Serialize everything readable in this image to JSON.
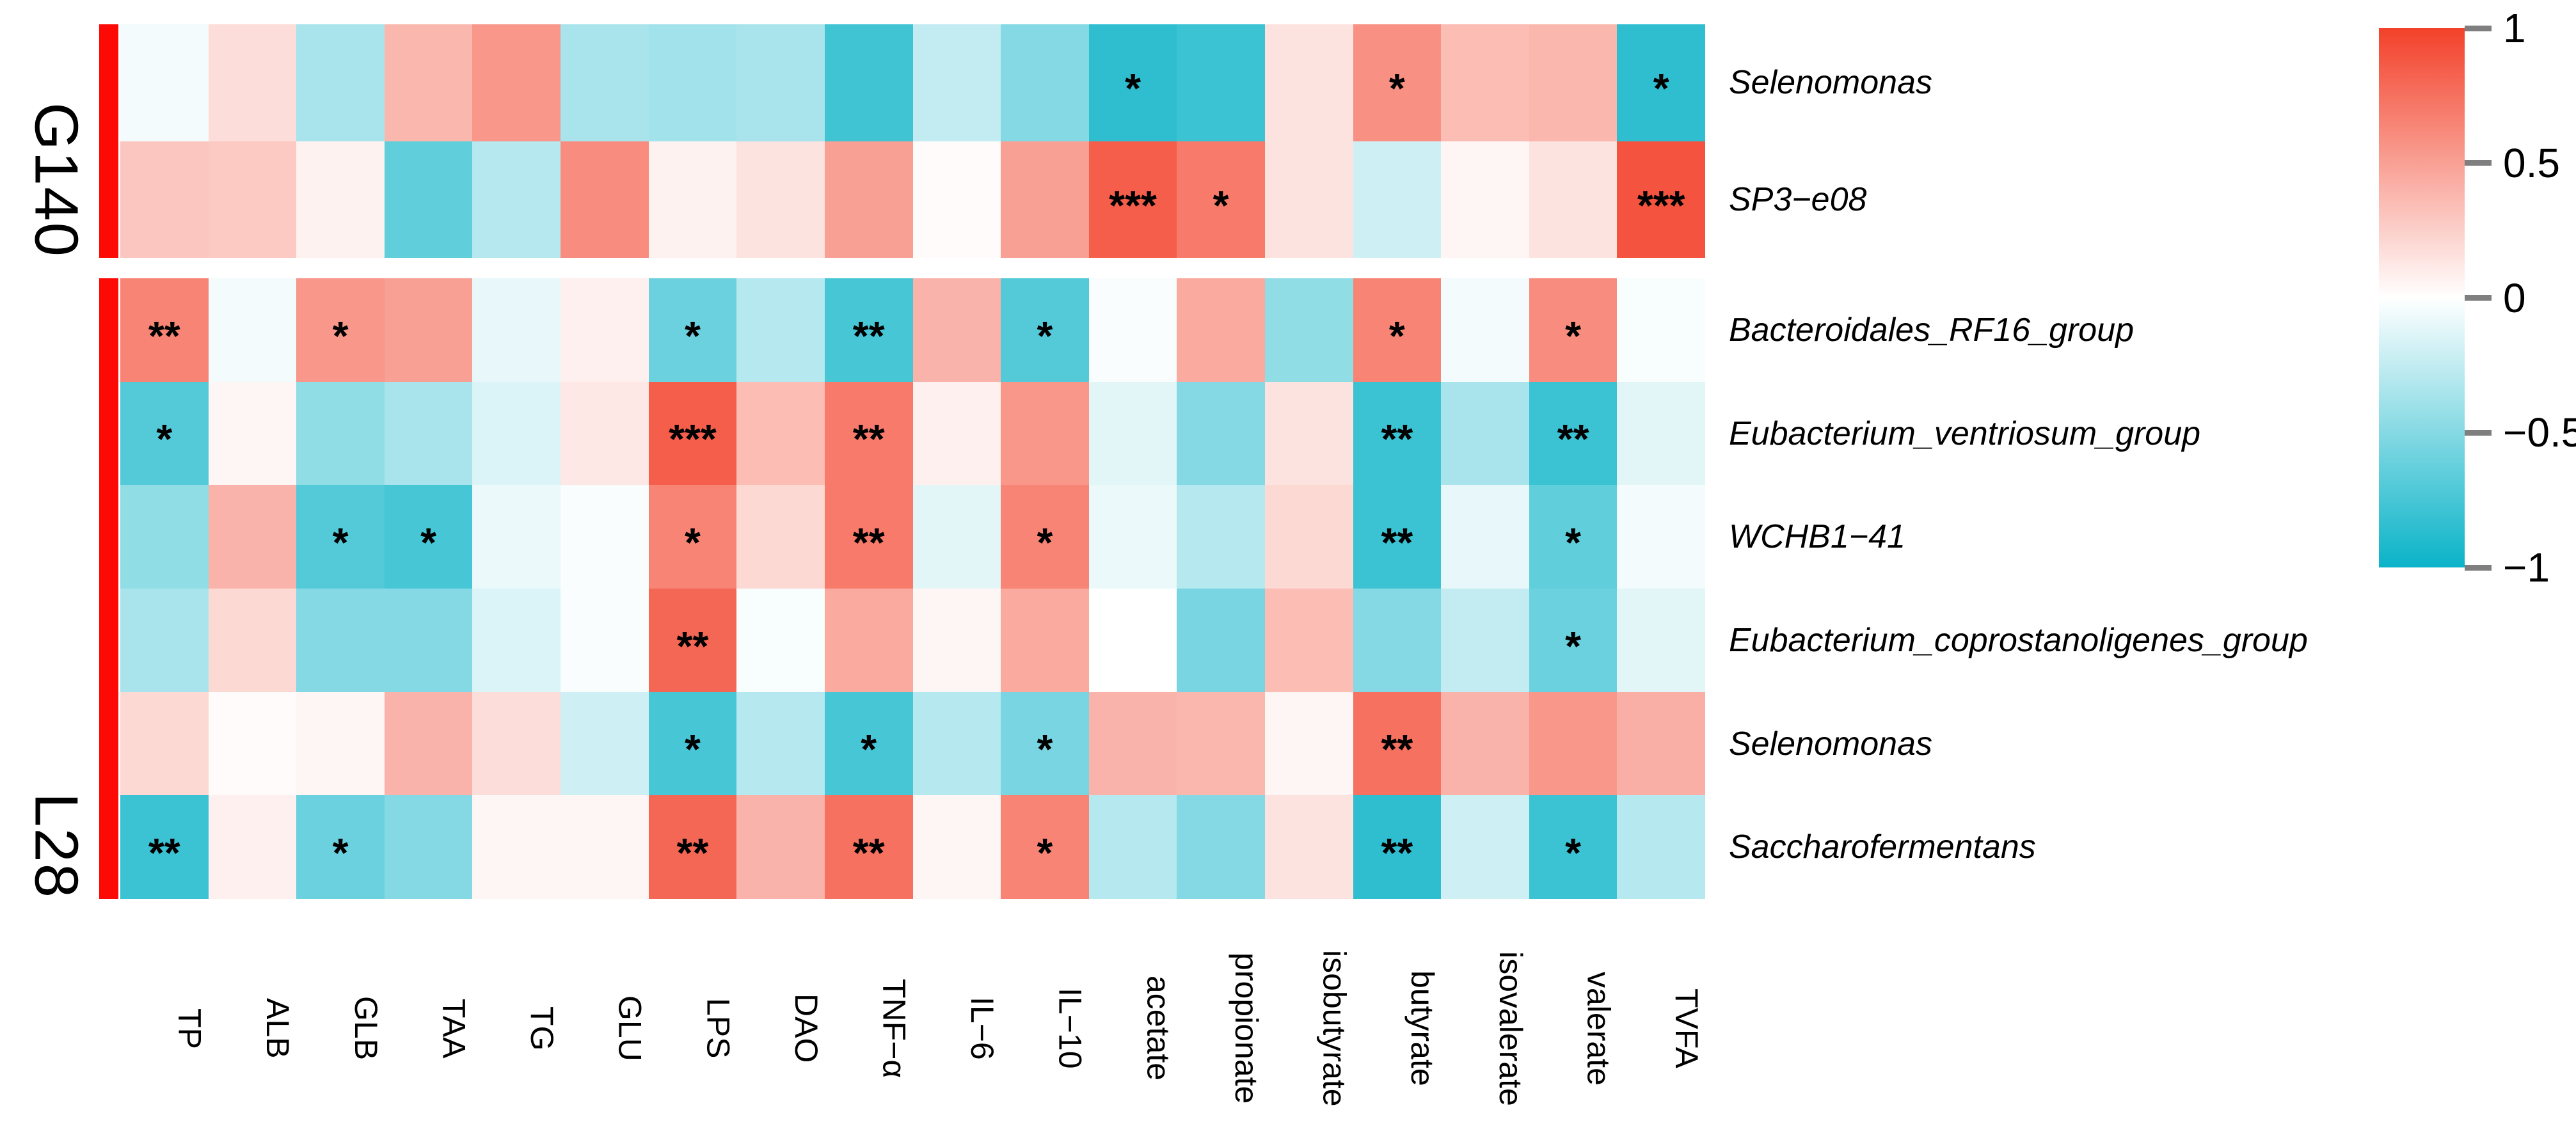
{
  "palette": {
    "positive_max": "#f3412a",
    "zero": "#ffffff",
    "negative_max": "#0ab3c8",
    "sidebar_red": "#fe0a06",
    "tick_mark_gray": "#7f7f7f",
    "text_black": "#000000"
  },
  "colorbar": {
    "orientation": "vertical",
    "top_value": 1,
    "bottom_value": -1,
    "ticks": [
      {
        "label": "1",
        "value": 1
      },
      {
        "label": "0.5",
        "value": 0.5
      },
      {
        "label": "0",
        "value": 0
      },
      {
        "label": "−0.5",
        "value": -0.5
      },
      {
        "label": "−1",
        "value": -1
      }
    ]
  },
  "chart_data": {
    "type": "heatmap",
    "title": "",
    "xlabel": "",
    "ylabel": "",
    "value_range": [
      -1,
      1
    ],
    "legend_position": "right",
    "grid": false,
    "columns": [
      "TP",
      "ALB",
      "GLB",
      "TAA",
      "TG",
      "GLU",
      "LPS",
      "DAO",
      "TNF−α",
      "IL−6",
      "IL−10",
      "acetate",
      "propionate",
      "isobutyrate",
      "butyrate",
      "isovalerate",
      "valerate",
      "TVFA"
    ],
    "row_groups": [
      {
        "name": "G140",
        "rows": [
          {
            "label": "Selenomonas",
            "values": [
              -0.05,
              0.18,
              -0.35,
              0.38,
              0.55,
              -0.35,
              -0.38,
              -0.35,
              -0.78,
              -0.25,
              -0.5,
              -0.85,
              -0.8,
              0.15,
              0.58,
              0.35,
              0.38,
              -0.85
            ],
            "significance": [
              "",
              "",
              "",
              "",
              "",
              "",
              "",
              "",
              "",
              "",
              "",
              "*",
              "",
              "",
              "*",
              "",
              "",
              "*"
            ]
          },
          {
            "label": "SP3−e08",
            "values": [
              0.3,
              0.28,
              0.07,
              -0.65,
              -0.3,
              0.6,
              0.07,
              0.15,
              0.5,
              0.02,
              0.5,
              0.85,
              0.7,
              0.15,
              -0.2,
              0.05,
              0.15,
              0.9
            ],
            "significance": [
              "",
              "",
              "",
              "",
              "",
              "",
              "",
              "",
              "",
              "",
              "",
              "***",
              "*",
              "",
              "",
              "",
              "",
              "***"
            ]
          }
        ]
      },
      {
        "name": "L28",
        "rows": [
          {
            "label": "Bacteroidales_RF16_group",
            "values": [
              0.65,
              -0.05,
              0.55,
              0.5,
              -0.1,
              0.08,
              -0.6,
              -0.3,
              -0.75,
              0.4,
              -0.7,
              -0.02,
              0.45,
              -0.45,
              0.65,
              -0.05,
              0.6,
              -0.03
            ],
            "significance": [
              "**",
              "",
              "*",
              "",
              "",
              "",
              "*",
              "",
              "**",
              "",
              "*",
              "",
              "",
              "",
              "*",
              "",
              "*",
              ""
            ]
          },
          {
            "label": "Eubacterium_ventriosum_group",
            "values": [
              -0.7,
              0.05,
              -0.45,
              -0.35,
              -0.15,
              0.12,
              0.85,
              0.35,
              0.7,
              0.08,
              0.55,
              -0.12,
              -0.5,
              0.15,
              -0.8,
              -0.35,
              -0.8,
              -0.12
            ],
            "significance": [
              "*",
              "",
              "",
              "",
              "",
              "",
              "***",
              "",
              "**",
              "",
              "",
              "",
              "",
              "",
              "**",
              "",
              "**",
              ""
            ]
          },
          {
            "label": "WCHB1−41",
            "values": [
              -0.45,
              0.4,
              -0.7,
              -0.75,
              -0.08,
              -0.02,
              0.65,
              0.2,
              0.7,
              -0.12,
              0.65,
              -0.08,
              -0.3,
              0.2,
              -0.8,
              -0.1,
              -0.65,
              -0.05
            ],
            "significance": [
              "",
              "",
              "*",
              "*",
              "",
              "",
              "*",
              "",
              "**",
              "",
              "*",
              "",
              "",
              "",
              "**",
              "",
              "*",
              ""
            ]
          },
          {
            "label": "Eubacterium_coprostanoligenes_group",
            "values": [
              -0.35,
              0.2,
              -0.5,
              -0.5,
              -0.15,
              -0.02,
              0.8,
              -0.03,
              0.45,
              0.05,
              0.45,
              0.0,
              -0.55,
              0.35,
              -0.5,
              -0.25,
              -0.6,
              -0.12
            ],
            "significance": [
              "",
              "",
              "",
              "",
              "",
              "",
              "**",
              "",
              "",
              "",
              "",
              "",
              "",
              "",
              "",
              "",
              "*",
              ""
            ]
          },
          {
            "label": "Selenomonas",
            "values": [
              0.2,
              0.02,
              0.05,
              0.4,
              0.18,
              -0.2,
              -0.75,
              -0.3,
              -0.75,
              -0.3,
              -0.55,
              0.4,
              0.38,
              0.05,
              0.75,
              0.4,
              0.55,
              0.42
            ],
            "significance": [
              "",
              "",
              "",
              "",
              "",
              "",
              "*",
              "",
              "*",
              "",
              "*",
              "",
              "",
              "",
              "**",
              "",
              "",
              ""
            ]
          },
          {
            "label": "Saccharofermentans",
            "values": [
              -0.8,
              0.08,
              -0.6,
              -0.5,
              0.05,
              0.05,
              0.8,
              0.4,
              0.75,
              0.05,
              0.65,
              -0.3,
              -0.5,
              0.15,
              -0.85,
              -0.2,
              -0.8,
              -0.3
            ],
            "significance": [
              "**",
              "",
              "*",
              "",
              "",
              "",
              "**",
              "",
              "**",
              "",
              "*",
              "",
              "",
              "",
              "**",
              "",
              "*",
              ""
            ]
          }
        ]
      }
    ]
  }
}
